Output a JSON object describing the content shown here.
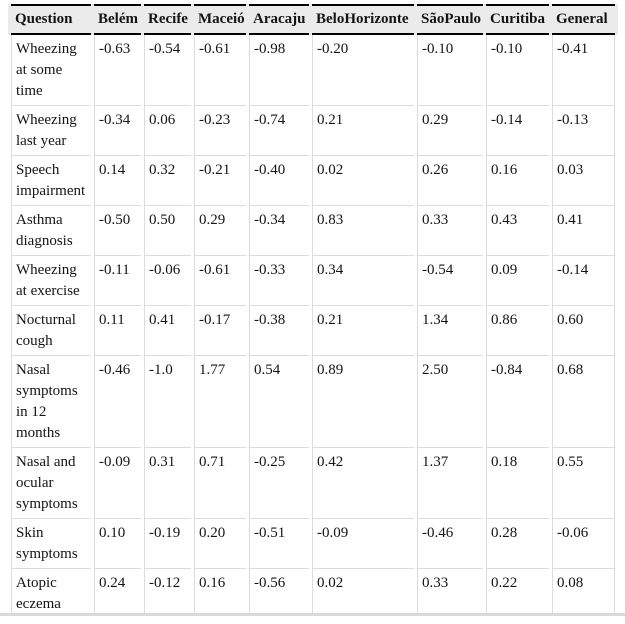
{
  "table": {
    "columns": [
      "Question",
      "Belém",
      "Recife",
      "Maceió",
      "Aracaju",
      "BeloHorizonte",
      "SãoPaulo",
      "Curitiba",
      "General"
    ],
    "rows": [
      {
        "question": "Wheezing at some time",
        "values": [
          "-0.63",
          "-0.54",
          "-0.61",
          "-0.98",
          "-0.20",
          "-0.10",
          "-0.10",
          "-0.41"
        ]
      },
      {
        "question": "Wheezing last year",
        "values": [
          "-0.34",
          "0.06",
          "-0.23",
          "-0.74",
          "0.21",
          "0.29",
          "-0.14",
          "-0.13"
        ]
      },
      {
        "question": "Speech impairment",
        "values": [
          "0.14",
          "0.32",
          "-0.21",
          "-0.40",
          "0.02",
          "0.26",
          "0.16",
          "0.03"
        ]
      },
      {
        "question": "Asthma diagnosis",
        "values": [
          "-0.50",
          "0.50",
          "0.29",
          "-0.34",
          "0.83",
          "0.33",
          "0.43",
          "0.41"
        ]
      },
      {
        "question": "Wheezing at exercise",
        "values": [
          "-0.11",
          "-0.06",
          "-0.61",
          "-0.33",
          "0.34",
          "-0.54",
          "0.09",
          "-0.14"
        ]
      },
      {
        "question": "Nocturnal cough",
        "values": [
          "0.11",
          "0.41",
          "-0.17",
          "-0.38",
          "0.21",
          "1.34",
          "0.86",
          "0.60"
        ]
      },
      {
        "question": "Nasal symptoms in 12 months",
        "values": [
          "-0.46",
          "-1.0",
          "1.77",
          "0.54",
          "0.89",
          "2.50",
          "-0.84",
          "0.68"
        ]
      },
      {
        "question": "Nasal and ocular symptoms",
        "values": [
          "-0.09",
          "0.31",
          "0.71",
          "-0.25",
          "0.42",
          "1.37",
          "0.18",
          "0.55"
        ]
      },
      {
        "question": "Skin symptoms",
        "values": [
          "0.10",
          "-0.19",
          "0.20",
          "-0.51",
          "-0.09",
          "-0.46",
          "0.28",
          "-0.06"
        ]
      },
      {
        "question": "Atopic eczema",
        "values": [
          "0.24",
          "-0.12",
          "0.16",
          "-0.56",
          "0.02",
          "0.33",
          "0.22",
          "0.08"
        ]
      }
    ],
    "colors": {
      "header_bg": "#ebebeb",
      "header_rule": "#000000",
      "grid_line": "#dcdcdc",
      "text": "#141414",
      "bottom_rule": "#d9d9d9"
    }
  }
}
